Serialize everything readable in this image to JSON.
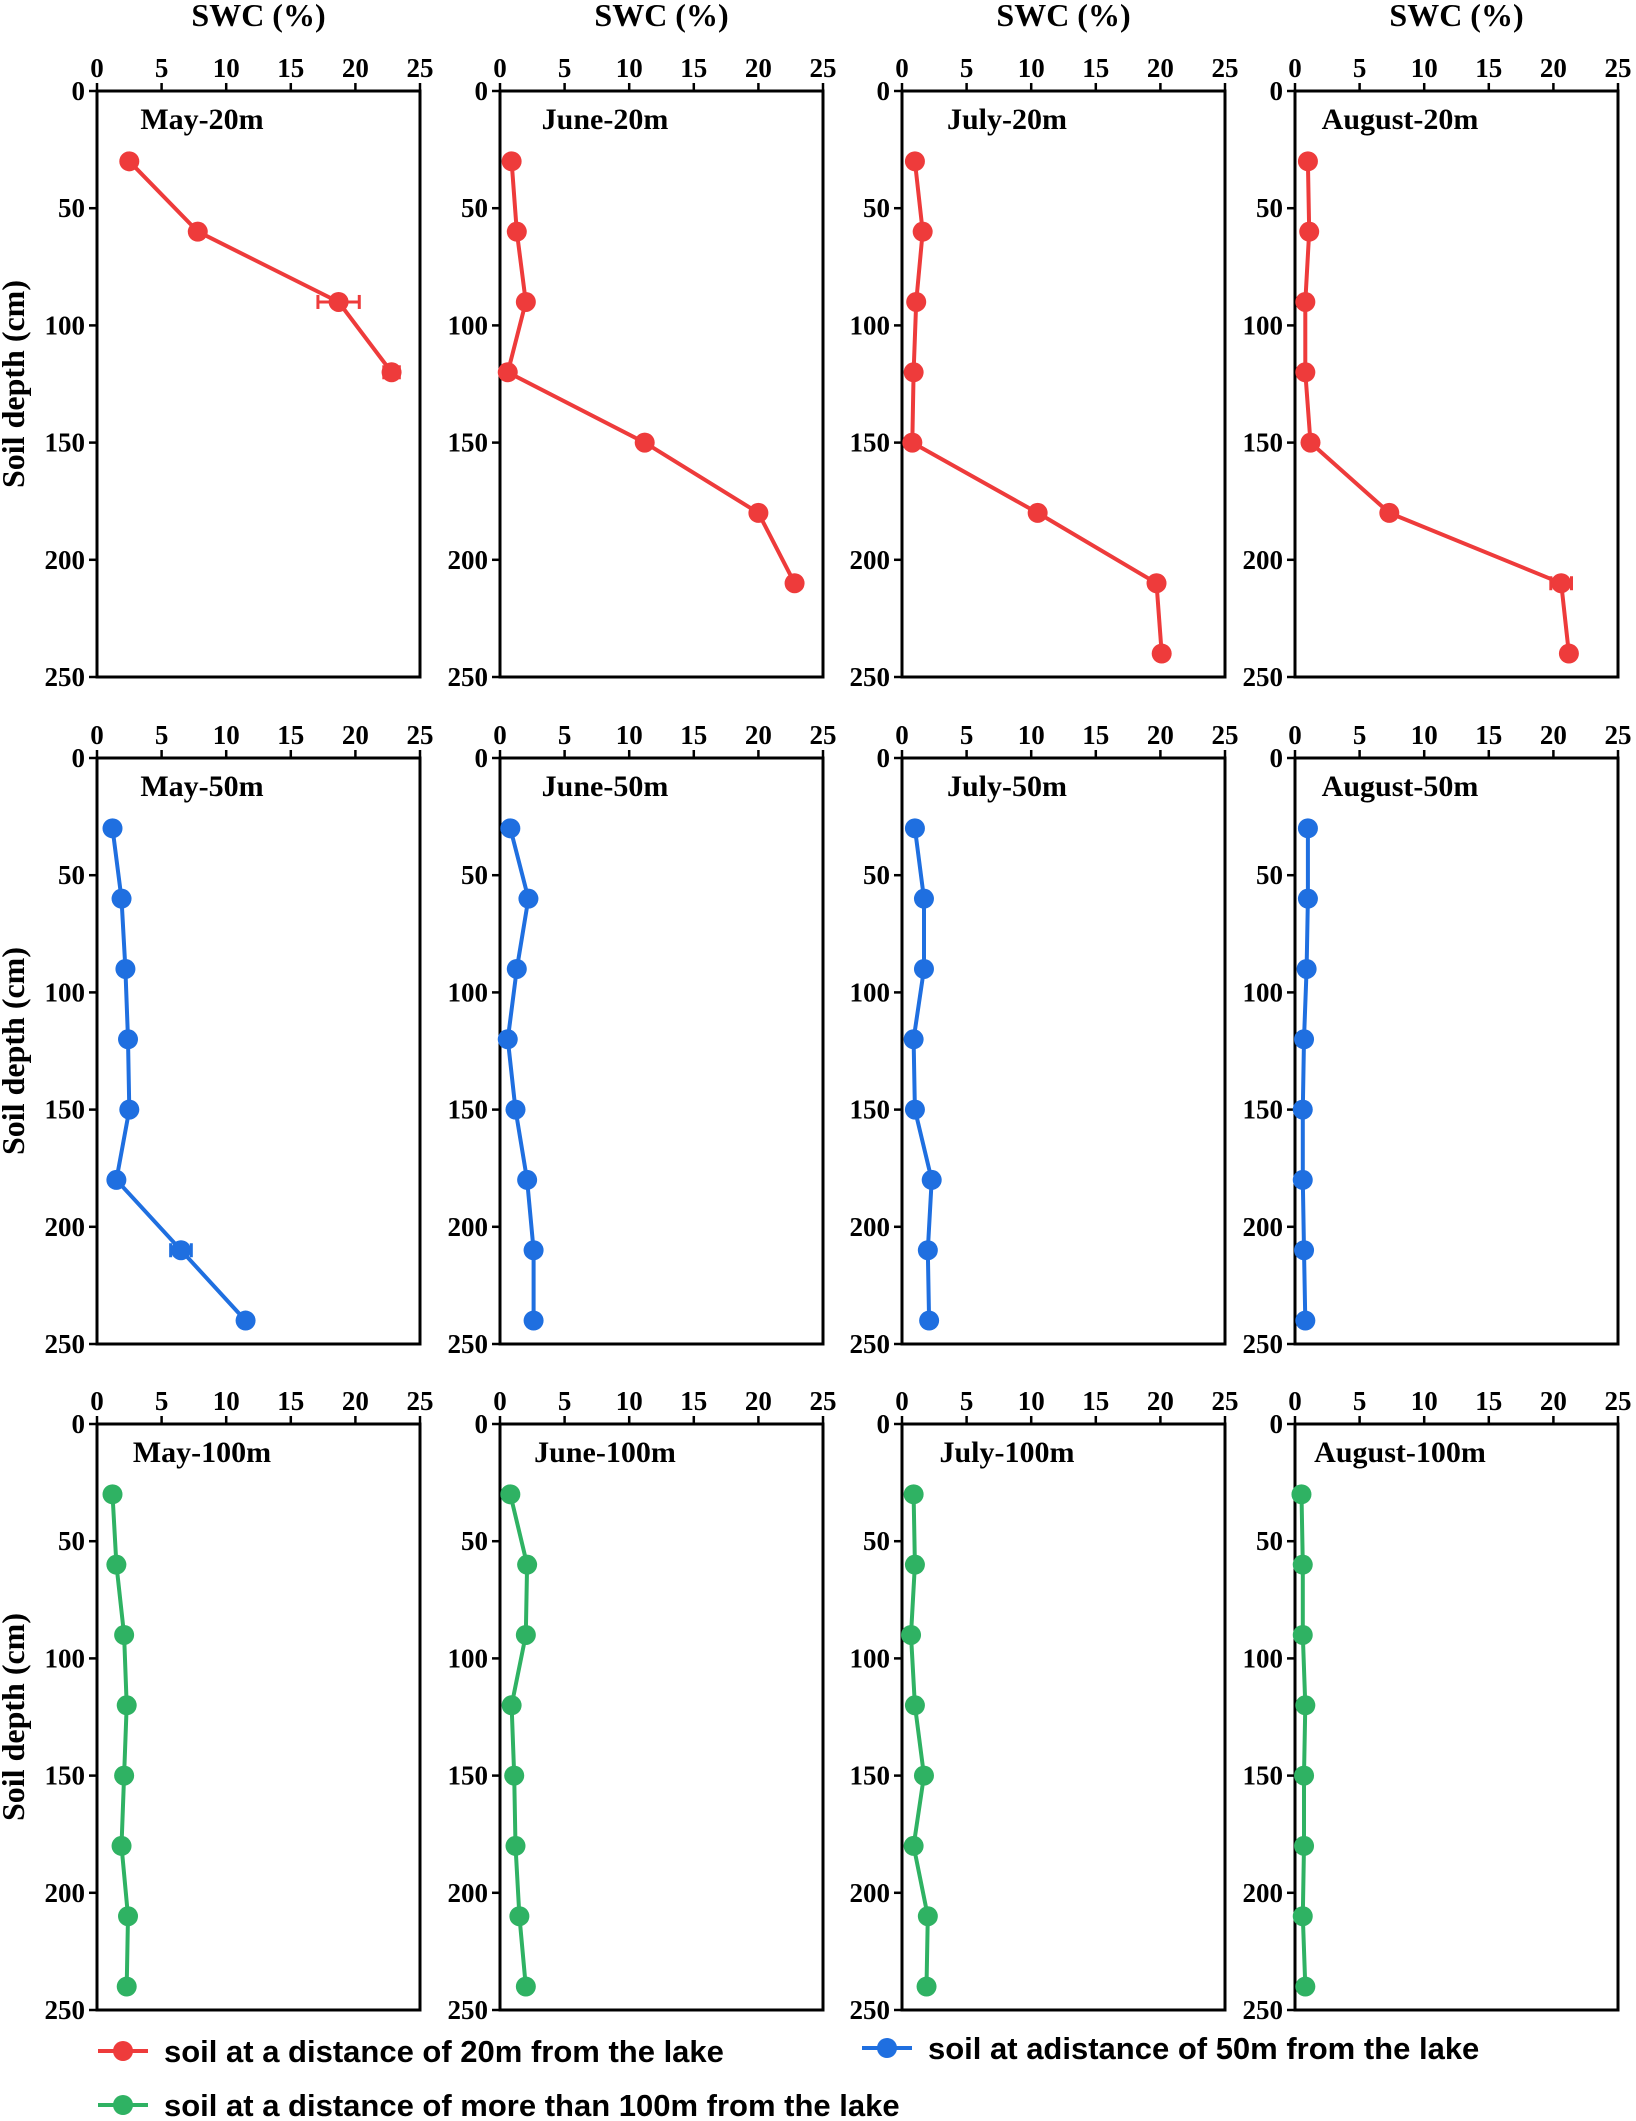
{
  "chart_data": {
    "type": "line",
    "x_axis_label": "SWC (%)",
    "y_axis_label": "Soil depth (cm)",
    "xlim": [
      0,
      25
    ],
    "ylim": [
      0,
      250
    ],
    "xticks": [
      "0",
      "5",
      "10",
      "15",
      "20",
      "25"
    ],
    "yticks": [
      "0",
      "50",
      "100",
      "150",
      "200",
      "250"
    ],
    "series_styles": [
      {
        "key": "20m",
        "color": "#ee3b3b",
        "legend": "soil at a distance of 20m from the lake"
      },
      {
        "key": "50m",
        "color": "#1f6fe0",
        "legend": "soil at adistance of 50m from the lake"
      },
      {
        "key": "100m",
        "color": "#2fb263",
        "legend": "soil at a distance of more than 100m from the lake"
      }
    ],
    "panels": [
      {
        "title": "May-20m",
        "series": "20m",
        "depth": [
          30,
          60,
          90,
          120
        ],
        "swc": [
          2.5,
          7.8,
          18.7,
          22.8
        ],
        "err": [
          0,
          0,
          1.6,
          0.6
        ]
      },
      {
        "title": "June-20m",
        "series": "20m",
        "depth": [
          30,
          60,
          90,
          120,
          150,
          180,
          210
        ],
        "swc": [
          0.9,
          1.3,
          2.0,
          0.6,
          11.2,
          20.0,
          22.8
        ],
        "err": [
          0,
          0,
          0,
          0,
          0,
          0,
          0
        ]
      },
      {
        "title": "July-20m",
        "series": "20m",
        "depth": [
          30,
          60,
          90,
          120,
          150,
          180,
          210,
          240
        ],
        "swc": [
          1.0,
          1.6,
          1.1,
          0.9,
          0.8,
          10.5,
          19.7,
          20.1
        ],
        "err": [
          0,
          0,
          0,
          0,
          0,
          0,
          0,
          0
        ]
      },
      {
        "title": "August-20m",
        "series": "20m",
        "depth": [
          30,
          60,
          90,
          120,
          150,
          180,
          210,
          240
        ],
        "swc": [
          1.0,
          1.1,
          0.8,
          0.8,
          1.2,
          7.3,
          20.6,
          21.2
        ],
        "err": [
          0,
          0,
          0,
          0,
          0,
          0,
          0.8,
          0
        ]
      },
      {
        "title": "May-50m",
        "series": "50m",
        "depth": [
          30,
          60,
          90,
          120,
          150,
          180,
          210,
          240
        ],
        "swc": [
          1.2,
          1.9,
          2.2,
          2.4,
          2.5,
          1.5,
          6.5,
          11.5
        ],
        "err": [
          0,
          0,
          0,
          0,
          0,
          0,
          0.8,
          0
        ]
      },
      {
        "title": "June-50m",
        "series": "50m",
        "depth": [
          30,
          60,
          90,
          120,
          150,
          180,
          210,
          240
        ],
        "swc": [
          0.8,
          2.2,
          1.3,
          0.6,
          1.2,
          2.1,
          2.6,
          2.6
        ],
        "err": [
          0,
          0,
          0,
          0,
          0,
          0,
          0,
          0
        ]
      },
      {
        "title": "July-50m",
        "series": "50m",
        "depth": [
          30,
          60,
          90,
          120,
          150,
          180,
          210,
          240
        ],
        "swc": [
          1.0,
          1.7,
          1.7,
          0.9,
          1.0,
          2.3,
          2.0,
          2.1
        ],
        "err": [
          0,
          0,
          0,
          0,
          0,
          0,
          0,
          0
        ]
      },
      {
        "title": "August-50m",
        "series": "50m",
        "depth": [
          30,
          60,
          90,
          120,
          150,
          180,
          210,
          240
        ],
        "swc": [
          1.0,
          1.0,
          0.9,
          0.7,
          0.6,
          0.6,
          0.7,
          0.8
        ],
        "err": [
          0,
          0,
          0,
          0,
          0,
          0,
          0,
          0
        ]
      },
      {
        "title": "May-100m",
        "series": "100m",
        "depth": [
          30,
          60,
          90,
          120,
          150,
          180,
          210,
          240
        ],
        "swc": [
          1.2,
          1.5,
          2.1,
          2.3,
          2.1,
          1.9,
          2.4,
          2.3
        ],
        "err": [
          0,
          0,
          0,
          0,
          0,
          0,
          0,
          0
        ]
      },
      {
        "title": "June-100m",
        "series": "100m",
        "depth": [
          30,
          60,
          90,
          120,
          150,
          180,
          210,
          240
        ],
        "swc": [
          0.8,
          2.1,
          2.0,
          0.9,
          1.1,
          1.2,
          1.5,
          2.0
        ],
        "err": [
          0,
          0,
          0,
          0,
          0,
          0,
          0,
          0
        ]
      },
      {
        "title": "July-100m",
        "series": "100m",
        "depth": [
          30,
          60,
          90,
          120,
          150,
          180,
          210,
          240
        ],
        "swc": [
          0.9,
          1.0,
          0.7,
          1.0,
          1.7,
          0.9,
          2.0,
          1.9
        ],
        "err": [
          0,
          0,
          0,
          0,
          0,
          0,
          0,
          0
        ]
      },
      {
        "title": "August-100m",
        "series": "100m",
        "depth": [
          30,
          60,
          90,
          120,
          150,
          180,
          210,
          240
        ],
        "swc": [
          0.5,
          0.6,
          0.6,
          0.8,
          0.7,
          0.7,
          0.6,
          0.8
        ],
        "err": [
          0,
          0,
          0,
          0,
          0,
          0,
          0,
          0
        ]
      }
    ]
  },
  "legend": {
    "item_20m": "soil at a distance of 20m from the lake",
    "item_50m": "soil at adistance of 50m from the lake",
    "item_100m": "soil at a distance of more than 100m from the lake"
  }
}
